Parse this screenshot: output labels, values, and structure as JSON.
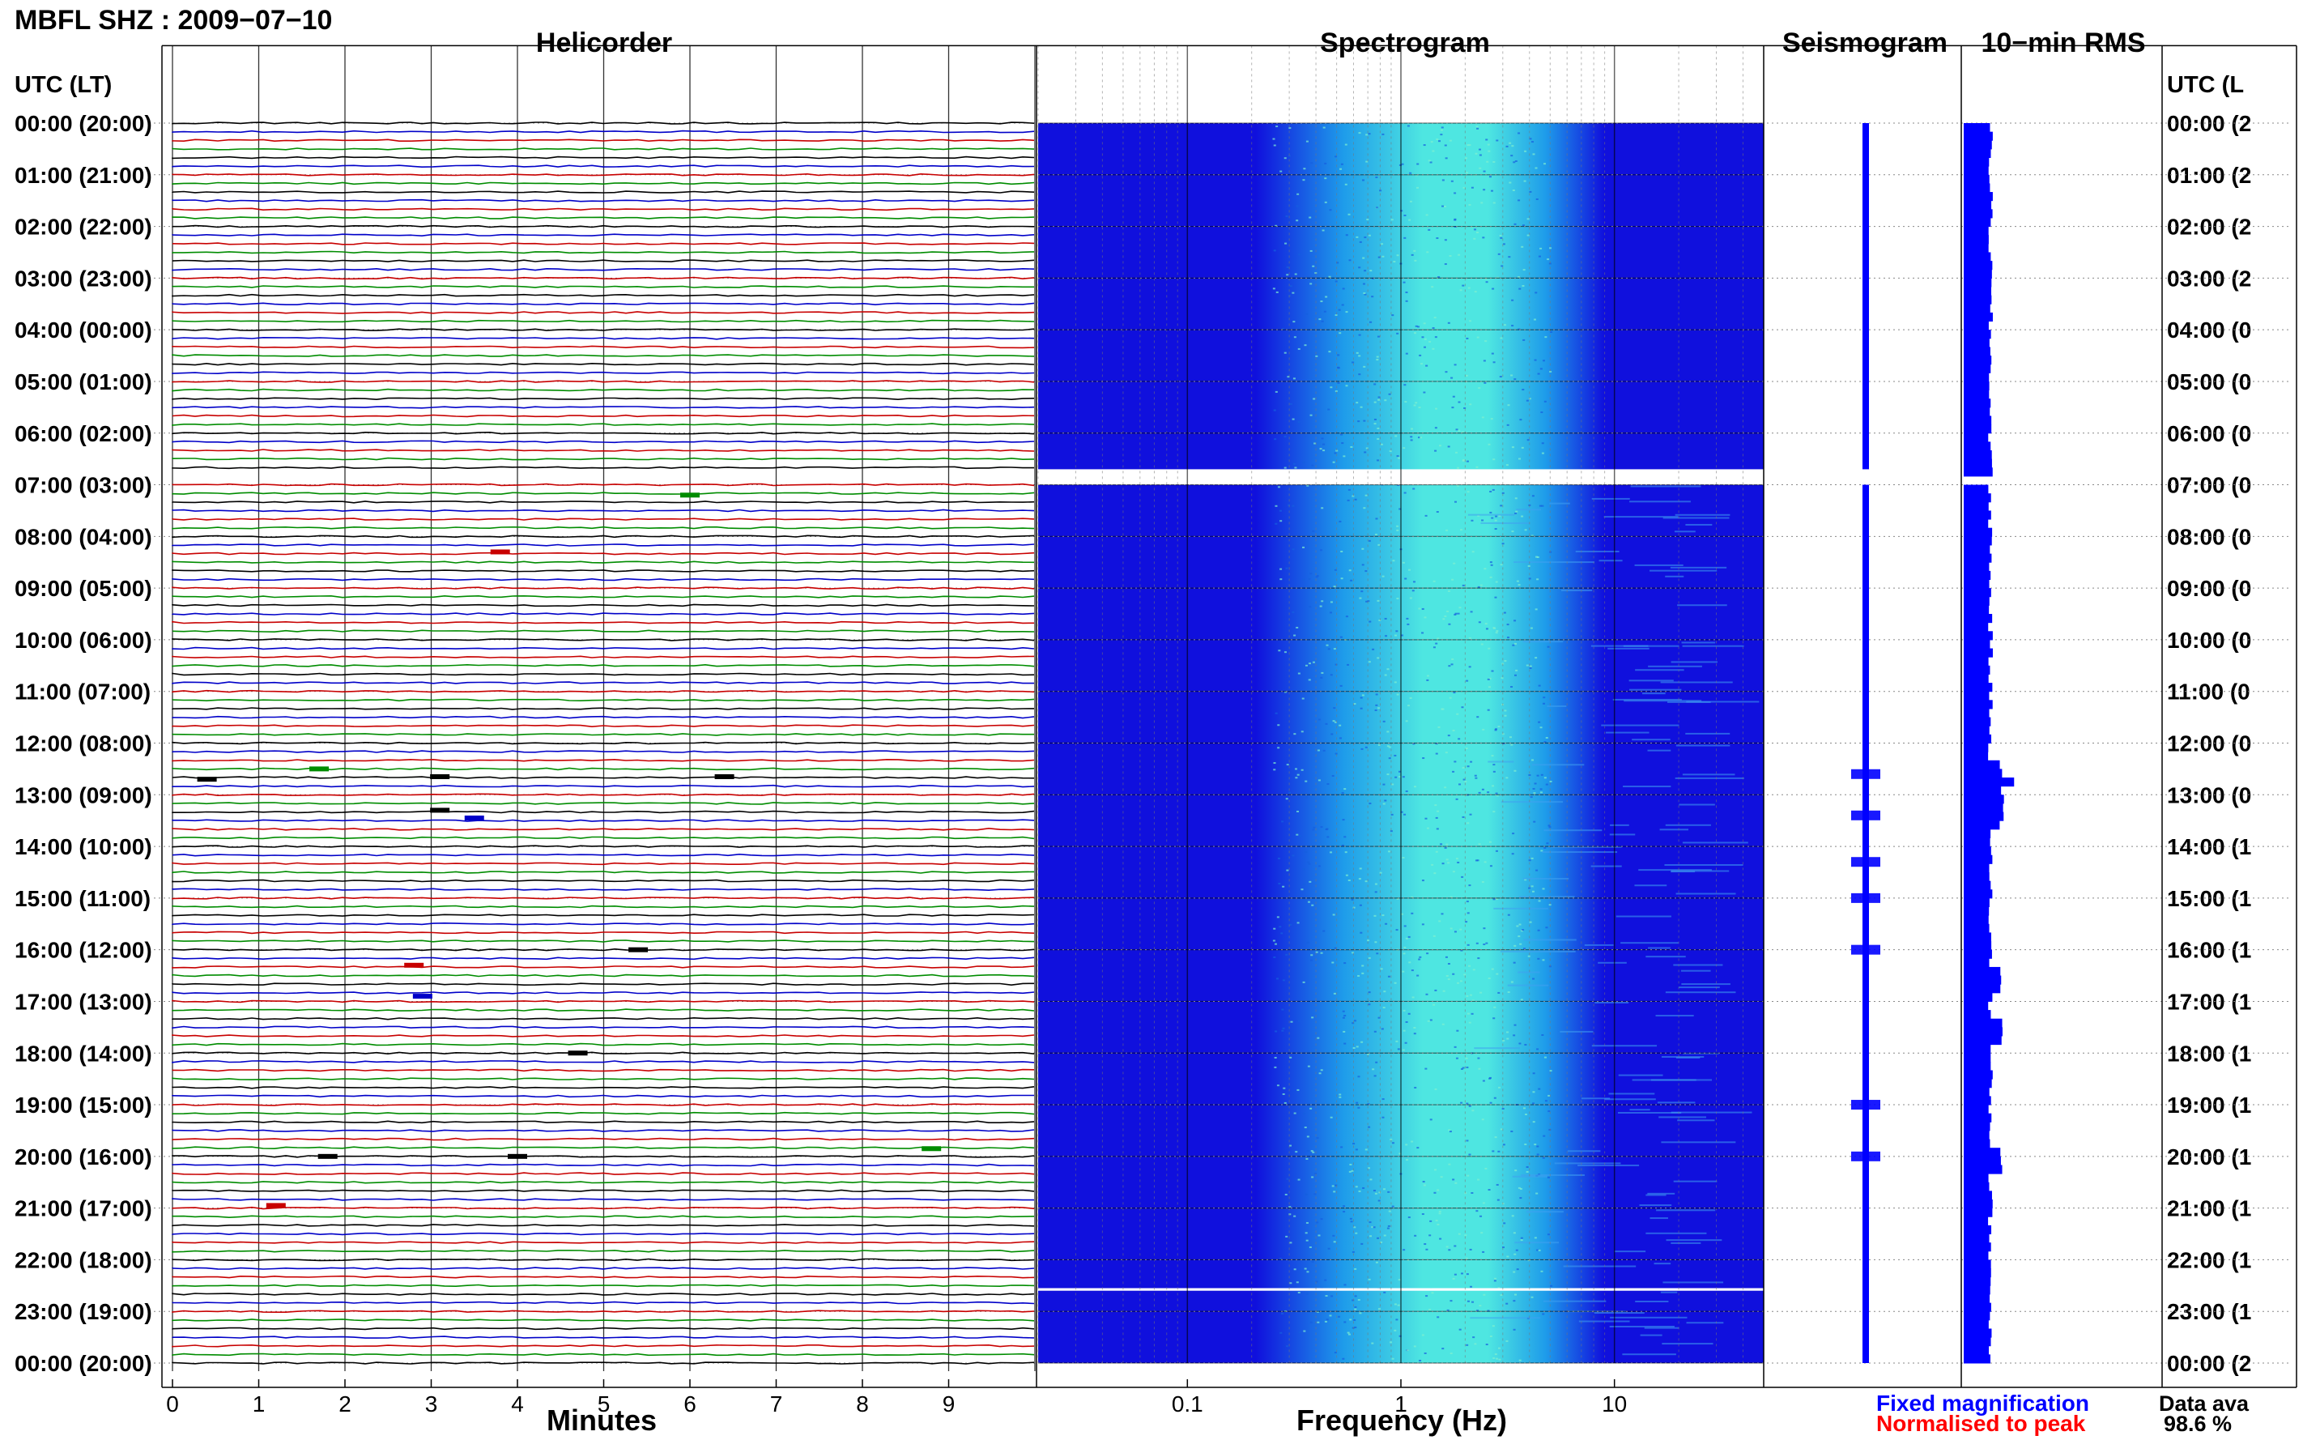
{
  "page_title": "MBFL SHZ : 2009−07−10",
  "panel_titles": {
    "helicorder": "Helicorder",
    "spectrogram": "Spectrogram",
    "seismogram": "Seismogram",
    "rms": "10−min RMS"
  },
  "axis_labels": {
    "left_header": "UTC (LT)",
    "right_header": "UTC (L",
    "helicorder_x": "Minutes",
    "spectrogram_x": "Frequency (Hz)"
  },
  "time_labels_left": [
    "00:00 (20:00)",
    "01:00 (21:00)",
    "02:00 (22:00)",
    "03:00 (23:00)",
    "04:00 (00:00)",
    "05:00 (01:00)",
    "06:00 (02:00)",
    "07:00 (03:00)",
    "08:00 (04:00)",
    "09:00 (05:00)",
    "10:00 (06:00)",
    "11:00 (07:00)",
    "12:00 (08:00)",
    "13:00 (09:00)",
    "14:00 (10:00)",
    "15:00 (11:00)",
    "16:00 (12:00)",
    "17:00 (13:00)",
    "18:00 (14:00)",
    "19:00 (15:00)",
    "20:00 (16:00)",
    "21:00 (17:00)",
    "22:00 (18:00)",
    "23:00 (19:00)",
    "00:00 (20:00)"
  ],
  "time_labels_right": [
    "00:00 (2",
    "01:00 (2",
    "02:00 (2",
    "03:00 (2",
    "04:00 (0",
    "05:00 (0",
    "06:00 (0",
    "07:00 (0",
    "08:00 (0",
    "09:00 (0",
    "10:00 (0",
    "11:00 (0",
    "12:00 (0",
    "13:00 (0",
    "14:00 (1",
    "15:00 (1",
    "16:00 (1",
    "17:00 (1",
    "18:00 (1",
    "19:00 (1",
    "20:00 (1",
    "21:00 (1",
    "22:00 (1",
    "23:00 (1",
    "00:00 (2"
  ],
  "legend": {
    "fixed": "Fixed magnification",
    "normalised": "Normalised to peak",
    "fixed_color": "#0000ff",
    "normalised_color": "#ff0000"
  },
  "data_availability": {
    "label": "Data ava",
    "value": "98.6 %"
  },
  "colors": {
    "trace_cycle": [
      "#000000",
      "#0000c8",
      "#c80000",
      "#008c00"
    ],
    "spec_background": "#1010dd",
    "spec_mid": "#1e9bea",
    "spec_peak": "#4ee6e1",
    "seismogram": "#0000ff",
    "rms_bar": "#0000ff"
  },
  "chart_data": [
    {
      "type": "line",
      "title": "Helicorder",
      "xlabel": "Minutes",
      "ylabel": "UTC (LT)",
      "xlim": [
        0,
        10
      ],
      "x_ticks": [
        "0",
        "1",
        "2",
        "3",
        "4",
        "5",
        "6",
        "7",
        "8",
        "9"
      ],
      "rows_per_hour": 6,
      "hours_shown": 24,
      "row_color_cycle": [
        "black",
        "blue",
        "red",
        "green"
      ],
      "gap": {
        "start_utc_hours": 6.7,
        "end_utc_hours": 7.0
      },
      "events": [
        {
          "utc_hours": 7.2,
          "minute": 6.0
        },
        {
          "utc_hours": 8.3,
          "minute": 3.8
        },
        {
          "utc_hours": 12.5,
          "minute": 1.7
        },
        {
          "utc_hours": 12.65,
          "minute": 3.1
        },
        {
          "utc_hours": 12.65,
          "minute": 6.4
        },
        {
          "utc_hours": 12.7,
          "minute": 0.4
        },
        {
          "utc_hours": 13.3,
          "minute": 3.1
        },
        {
          "utc_hours": 13.45,
          "minute": 3.5
        },
        {
          "utc_hours": 16.0,
          "minute": 5.4
        },
        {
          "utc_hours": 16.3,
          "minute": 2.8
        },
        {
          "utc_hours": 16.9,
          "minute": 2.9
        },
        {
          "utc_hours": 18.0,
          "minute": 4.7
        },
        {
          "utc_hours": 19.85,
          "minute": 8.8
        },
        {
          "utc_hours": 20.0,
          "minute": 1.8
        },
        {
          "utc_hours": 20.0,
          "minute": 4.0
        },
        {
          "utc_hours": 20.95,
          "minute": 1.2
        }
      ]
    },
    {
      "type": "heatmap",
      "title": "Spectrogram",
      "xlabel": "Frequency (Hz)",
      "x_scale": "log",
      "xlim": [
        0.02,
        50
      ],
      "x_ticks": [
        "0.1",
        "1",
        "10"
      ],
      "peak_frequency_hz": 1.0,
      "gaps": [
        {
          "start_utc_hours": 6.7,
          "end_utc_hours": 7.0
        },
        {
          "start_utc_hours": 22.55,
          "end_utc_hours": 22.6
        }
      ]
    },
    {
      "type": "line",
      "title": "Seismogram",
      "series_color": "blue",
      "bursts_utc_hours": [
        12.6,
        13.4,
        14.3,
        15.0,
        16.0,
        19.0,
        20.0
      ]
    },
    {
      "type": "bar",
      "title": "10−min RMS",
      "series_color": "blue",
      "gap": {
        "start_utc_hours": 6.7,
        "end_utc_hours": 7.0
      },
      "elevated_utc_hours": [
        12.5,
        12.8,
        13.3,
        16.5,
        17.5,
        20.0
      ]
    }
  ]
}
